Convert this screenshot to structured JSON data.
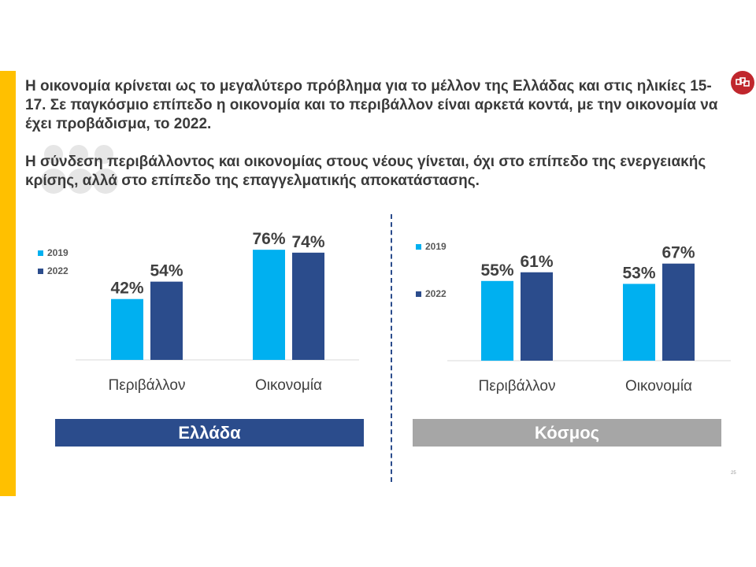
{
  "headline": {
    "p1": "Η οικονομία κρίνεται ως το μεγαλύτερο πρόβλημα για το μέλλον της Ελλάδας και στις ηλικίες 15-17. Σε παγκόσμιο επίπεδο η οικονομία και το περιβάλλον είναι αρκετά κοντά, με την οικονομία να έχει προβάδισμα, το 2022.",
    "p2": "Η σύνδεση περιβάλλοντος και οικονομίας στους νέους γίνεται, όχι στο επίπεδο της ενεργειακής κρίσης, αλλά στο επίπεδο της επαγγελματικής αποκατάστασης."
  },
  "regions": {
    "greece": "Ελλάδα",
    "world": "Κόσμος"
  },
  "page_number": "25",
  "colors": {
    "series_2019": "#00B0F0",
    "series_2022": "#2B4C8C",
    "accent": "#FFC000",
    "world_bar": "#A6A6A6"
  },
  "chart_data": [
    {
      "type": "bar",
      "categories": [
        "Περιβάλλον",
        "Οικονομία"
      ],
      "series": [
        {
          "name": "2019",
          "values": [
            42,
            76
          ]
        },
        {
          "name": "2022",
          "values": [
            54,
            74
          ]
        }
      ],
      "data_labels": [
        [
          "42%",
          "76%"
        ],
        [
          "54%",
          "74%"
        ]
      ],
      "ylim": [
        0,
        100
      ],
      "legend": "left",
      "grid": false
    },
    {
      "type": "bar",
      "categories": [
        "Περιβάλλον",
        "Οικονομία"
      ],
      "series": [
        {
          "name": "2019",
          "values": [
            55,
            53
          ]
        },
        {
          "name": "2022",
          "values": [
            61,
            67
          ]
        }
      ],
      "data_labels": [
        [
          "55%",
          "53%"
        ],
        [
          "61%",
          "67%"
        ]
      ],
      "ylim": [
        0,
        100
      ],
      "legend": "left",
      "grid": false
    }
  ]
}
